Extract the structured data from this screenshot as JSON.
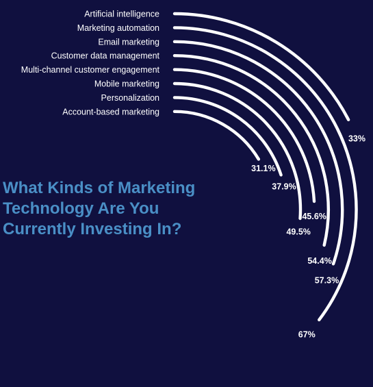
{
  "title_lines": [
    "What Kinds of Marketing",
    "Technology Are You",
    "Currently Investing In?"
  ],
  "colors": {
    "background": "#10103f",
    "arc": "#ffffff",
    "title": "#4a8fc6"
  },
  "chart_data": {
    "type": "radial-bar",
    "title": "What Kinds of Marketing Technology Are You Currently Investing In?",
    "unit": "%",
    "categories": [
      "Artificial intelligence",
      "Marketing automation",
      "Email marketing",
      "Customer data management",
      "Multi-channel customer engagement",
      "Mobile marketing",
      "Personalization",
      "Account-based marketing"
    ],
    "value_labels": [
      "33%",
      "67%",
      "57.3%",
      "54.4%",
      "45.6%",
      "49.5%",
      "37.9%",
      "31.1%"
    ],
    "values": [
      33,
      67,
      57.3,
      54.4,
      45.6,
      49.5,
      37.9,
      31.1
    ]
  }
}
